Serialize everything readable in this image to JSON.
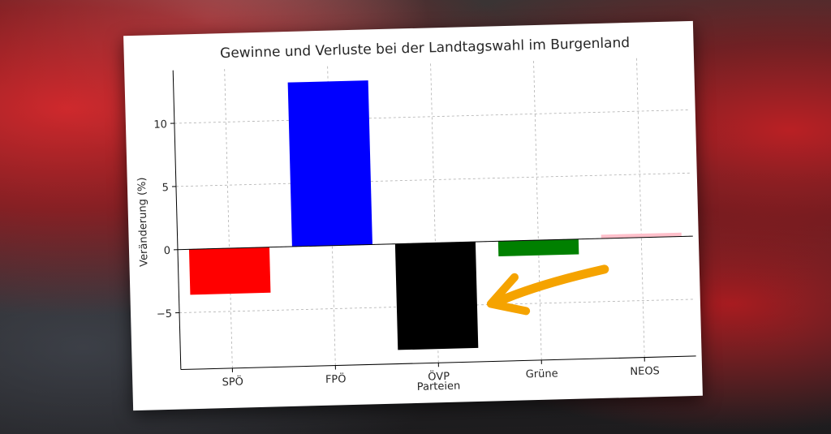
{
  "chart_data": {
    "type": "bar",
    "title": "Gewinne und Verluste bei der Landtagswahl im Burgenland",
    "xlabel": "Parteien",
    "ylabel": "Veränderung (%)",
    "categories": [
      "SPÖ",
      "FPÖ",
      "ÖVP",
      "Grüne",
      "NEOS"
    ],
    "values": [
      -3.6,
      13.0,
      -8.4,
      -1.2,
      0.3
    ],
    "colors": [
      "#ff0000",
      "#0000ff",
      "#000000",
      "#008000",
      "#ffc0cb"
    ],
    "ylim": [
      -9.5,
      14.2
    ],
    "yticks": [
      -5,
      0,
      5,
      10
    ],
    "grid": true
  },
  "annotation": {
    "arrow_color": "#f5a300",
    "arrow_target": "ÖVP"
  }
}
